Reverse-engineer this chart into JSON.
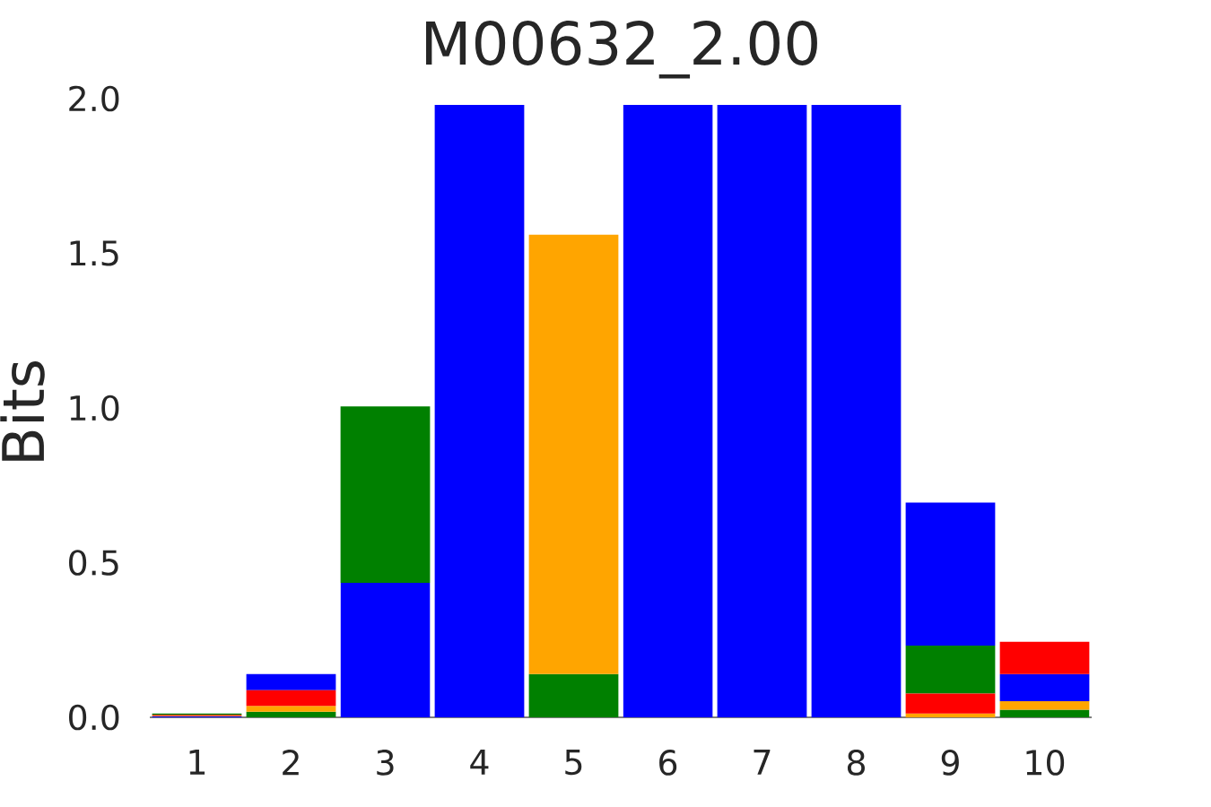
{
  "chart_data": {
    "type": "bar",
    "title": "M00632_2.00",
    "ylabel": "Bits",
    "categories": [
      "1",
      "2",
      "3",
      "4",
      "5",
      "6",
      "7",
      "8",
      "9",
      "10"
    ],
    "ylim": [
      0,
      2
    ],
    "yticks": [
      {
        "value": 0,
        "label": "0.0"
      },
      {
        "value": 0.5,
        "label": "0.5"
      },
      {
        "value": 1,
        "label": "1.0"
      },
      {
        "value": 1.5,
        "label": "1.5"
      },
      {
        "value": 2,
        "label": "2.0"
      }
    ],
    "grid": false,
    "series": [
      {
        "color": "#008000",
        "values": [
          0.004,
          0.018,
          0.57,
          null,
          0.14,
          null,
          null,
          null,
          0.155,
          0.025
        ],
        "base": [
          0.008,
          0,
          0.435,
          null,
          0,
          null,
          null,
          null,
          0.077,
          0
        ]
      },
      {
        "color": "#0000ff",
        "values": [
          0.003,
          0.052,
          0.435,
          1.98,
          null,
          1.98,
          1.98,
          1.98,
          0.462,
          0.088
        ],
        "base": [
          0,
          0.088,
          0,
          0,
          null,
          0,
          0,
          0,
          0.232,
          0.052
        ]
      },
      {
        "color": "#ffa500",
        "values": [
          0.002,
          0.019,
          null,
          null,
          1.42,
          null,
          null,
          null,
          0.012,
          0.027
        ],
        "base": [
          0.003,
          0.018,
          null,
          null,
          0.14,
          null,
          null,
          null,
          0,
          0.025
        ]
      },
      {
        "color": "#ff0000",
        "values": [
          0.003,
          0.051,
          null,
          null,
          null,
          null,
          null,
          null,
          0.065,
          0.104
        ],
        "base": [
          0.005,
          0.037,
          null,
          null,
          null,
          null,
          null,
          null,
          0.012,
          0.14
        ]
      }
    ]
  }
}
